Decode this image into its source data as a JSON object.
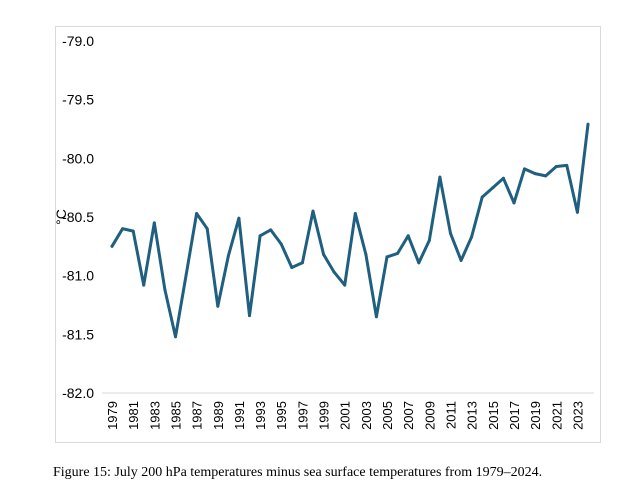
{
  "chart_data": {
    "type": "line",
    "title": "",
    "xlabel": "",
    "ylabel": "°C",
    "ylim": [
      -82.0,
      -79.0
    ],
    "yticks": [
      "-79.0",
      "-79.5",
      "-80.0",
      "-80.5",
      "-81.0",
      "-81.5",
      "-82.0"
    ],
    "ytick_values": [
      -79.0,
      -79.5,
      -80.0,
      -80.5,
      -81.0,
      -81.5,
      -82.0
    ],
    "xticks": [
      "1979",
      "1981",
      "1983",
      "1985",
      "1987",
      "1989",
      "1991",
      "1993",
      "1995",
      "1997",
      "1999",
      "2001",
      "2003",
      "2005",
      "2007",
      "2009",
      "2011",
      "2013",
      "2015",
      "2017",
      "2019",
      "2021",
      "2023"
    ],
    "grid": false,
    "legend": "none",
    "line_color": "#1f5f7f",
    "series": [
      {
        "x": [
          1979,
          1980,
          1981,
          1982,
          1983,
          1984,
          1985,
          1986,
          1987,
          1988,
          1989,
          1990,
          1991,
          1992,
          1993,
          1994,
          1995,
          1996,
          1997,
          1998,
          1999,
          2000,
          2001,
          2002,
          2003,
          2004,
          2005,
          2006,
          2007,
          2008,
          2009,
          2010,
          2011,
          2012,
          2013,
          2014,
          2015,
          2016,
          2017,
          2018,
          2019,
          2020,
          2021,
          2022,
          2023,
          2024
        ],
        "values": [
          -80.75,
          -80.6,
          -80.62,
          -81.08,
          -80.55,
          -81.12,
          -81.52,
          -81.0,
          -80.47,
          -80.6,
          -81.26,
          -80.83,
          -80.51,
          -81.34,
          -80.66,
          -80.61,
          -80.73,
          -80.93,
          -80.89,
          -80.45,
          -80.82,
          -80.97,
          -81.08,
          -80.47,
          -80.82,
          -81.35,
          -80.84,
          -80.81,
          -80.66,
          -80.89,
          -80.7,
          -80.16,
          -80.64,
          -80.87,
          -80.67,
          -80.33,
          -80.25,
          -80.17,
          -80.38,
          -80.09,
          -80.13,
          -80.15,
          -80.07,
          -80.06,
          -80.46,
          -79.71
        ]
      }
    ]
  },
  "caption": "Figure 15: July 200 hPa temperatures minus sea surface temperatures from 1979–2024."
}
